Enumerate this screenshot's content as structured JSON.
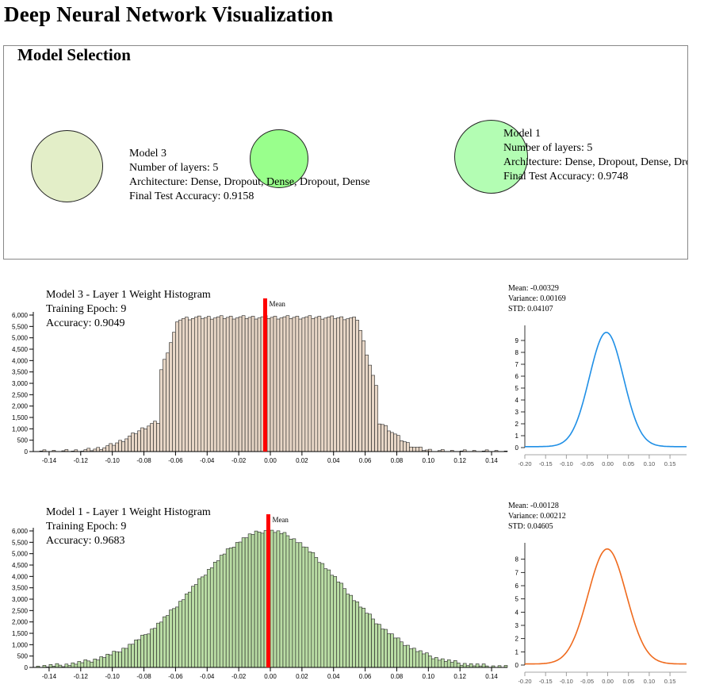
{
  "title": "Deep Neural Network Visualization",
  "model_selection": {
    "heading": "Model Selection",
    "models": [
      {
        "info": [
          "Model 3",
          "Number of layers: 5",
          "Architecture: Dense, Dropout, Dense, Dropout, Dense",
          "Final Test Accuracy: 0.9158"
        ],
        "color": "#e3eec8"
      },
      {
        "info": [],
        "color": "#99ff8c"
      },
      {
        "info": [
          "Model 1",
          "Number of layers: 5",
          "Architecture: Dense, Dropout, Dense, Dropout, Dense",
          "Final Test Accuracy: 0.9748"
        ],
        "color": "#b3fdb3"
      }
    ]
  },
  "panels": [
    {
      "title": "Model 3 - Layer 1 Weight Histogram",
      "epoch": "Training Epoch: 9",
      "accuracy": "Accuracy: 0.9049",
      "mean_label": "Mean",
      "stats": [
        "Mean: -0.00329",
        "Variance: 0.00169",
        "STD: 0.04107"
      ],
      "bar_fill": "#e7d6c6",
      "curve_color": "#1f8fe6",
      "mean_value": -0.00329,
      "std": 0.04107,
      "hist_yticks": [
        "0",
        "500",
        "1,000",
        "1,500",
        "2,000",
        "2,500",
        "3,000",
        "3,500",
        "4,000",
        "4,500",
        "5,000",
        "5,500",
        "6,000"
      ],
      "hist_xticks": [
        "-0.14",
        "-0.12",
        "-0.10",
        "-0.08",
        "-0.06",
        "-0.04",
        "-0.02",
        "0.00",
        "0.02",
        "0.04",
        "0.06",
        "0.08",
        "0.10",
        "0.12",
        "0.14"
      ],
      "kde_yticks": [
        "0",
        "1",
        "2",
        "3",
        "4",
        "5",
        "6",
        "7",
        "8",
        "9"
      ],
      "kde_xticks": [
        "-0.20",
        "-0.15",
        "-0.10",
        "-0.05",
        "0.00",
        "0.05",
        "0.10",
        "0.15"
      ],
      "kde_peak": 9.6
    },
    {
      "title": "Model 1 - Layer 1 Weight Histogram",
      "epoch": "Training Epoch: 9",
      "accuracy": "Accuracy: 0.9683",
      "mean_label": "Mean",
      "stats": [
        "Mean: -0.00128",
        "Variance: 0.00212",
        "STD: 0.04605"
      ],
      "bar_fill": "#b9dca4",
      "curve_color": "#ef6a1d",
      "mean_value": -0.00128,
      "std": 0.04605,
      "hist_yticks": [
        "0",
        "500",
        "1,000",
        "1,500",
        "2,000",
        "2,500",
        "3,000",
        "3,500",
        "4,000",
        "4,500",
        "5,000",
        "5,500",
        "6,000"
      ],
      "hist_xticks": [
        "-0.14",
        "-0.12",
        "-0.10",
        "-0.08",
        "-0.06",
        "-0.04",
        "-0.02",
        "0.00",
        "0.02",
        "0.04",
        "0.06",
        "0.08",
        "0.10",
        "0.12",
        "0.14"
      ],
      "kde_yticks": [
        "0",
        "1",
        "2",
        "3",
        "4",
        "5",
        "6",
        "7",
        "8"
      ],
      "kde_xticks": [
        "-0.20",
        "-0.15",
        "-0.10",
        "-0.05",
        "0.00",
        "0.05",
        "0.10",
        "0.15"
      ],
      "kde_peak": 8.7
    }
  ],
  "chart_data": [
    {
      "type": "bar",
      "title": "Model 3 - Layer 1 Weight Histogram",
      "xlim": [
        -0.15,
        0.15
      ],
      "ylim": [
        0,
        6000
      ],
      "shape": "flat-topped",
      "plateau": 5900,
      "edges": [
        -0.07,
        0.067
      ],
      "mean": -0.00329
    },
    {
      "type": "line",
      "xlim": [
        -0.2,
        0.19
      ],
      "ylim": [
        0,
        10
      ],
      "distribution": "normal",
      "mean": -0.00329,
      "std": 0.04107
    },
    {
      "type": "bar",
      "title": "Model 1 - Layer 1 Weight Histogram",
      "xlim": [
        -0.15,
        0.15
      ],
      "ylim": [
        0,
        6000
      ],
      "shape": "bell",
      "peak": 6000,
      "mean": -0.00128,
      "std": 0.04605
    },
    {
      "type": "line",
      "xlim": [
        -0.2,
        0.19
      ],
      "ylim": [
        0,
        9
      ],
      "distribution": "normal",
      "mean": -0.00128,
      "std": 0.04605
    }
  ]
}
